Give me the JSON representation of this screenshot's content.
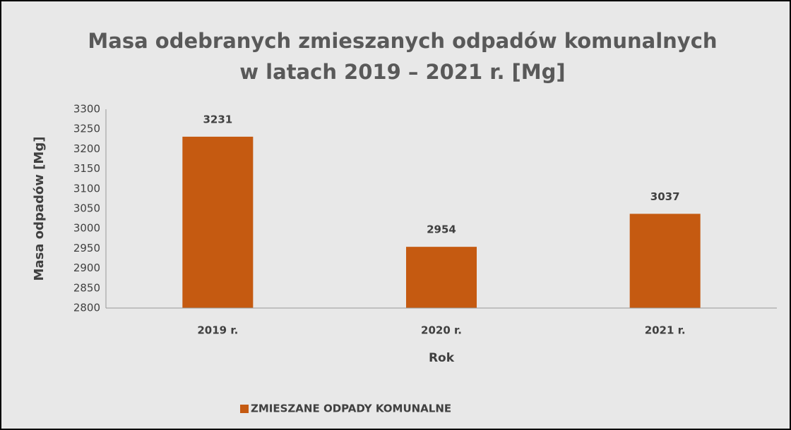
{
  "chart_data": {
    "type": "bar",
    "title": [
      "Masa odebranych zmieszanych odpadów komunalnych",
      "w latach 2019 – 2021 r. [Mg]"
    ],
    "x_label": "Rok",
    "y_label": "Masa odpadów [Mg]",
    "categories": [
      "2019 r.",
      "2020 r.",
      "2021 r."
    ],
    "series": [
      {
        "name": "ZMIESZANE ODPADY KOMUNALNE",
        "color": "#c55a11",
        "values": [
          3231,
          2954,
          3037
        ]
      }
    ],
    "ylim": [
      2800,
      3300
    ],
    "yticks": [
      2800,
      2850,
      2900,
      2950,
      3000,
      3050,
      3100,
      3150,
      3200,
      3250,
      3300
    ],
    "grid": false,
    "legend": "bottom"
  }
}
